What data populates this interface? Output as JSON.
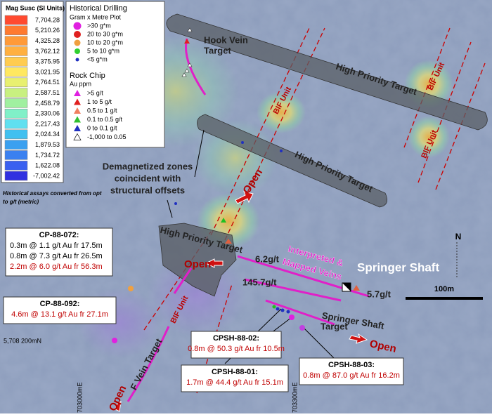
{
  "mag_legend": {
    "title": "Mag Susc (SI Units)",
    "values": [
      "7,704.28",
      "5,210.26",
      "4,325.28",
      "3,762.12",
      "3,375.95",
      "3,021.95",
      "2,764.51",
      "2,587.51",
      "2,458.79",
      "2,330.06",
      "2,217.43",
      "2,024.34",
      "1,879.53",
      "1,734.72",
      "1,622.08",
      "-7,002.42"
    ],
    "note": [
      "Historical assays converted from opt",
      "to g/t (metric)"
    ]
  },
  "drill_legend": {
    "title": "Historical Drilling",
    "subtitle": "Gram x Metre Plot",
    "items": [
      ">30 g*m",
      "20 to 30 g*m",
      "10 to 20 g*m",
      "5 to 10 g*m",
      "<5 g*m"
    ]
  },
  "rock_legend": {
    "title": "Rock Chip",
    "subtitle": "Au ppm",
    "items": [
      ">5 g/t",
      "1 to 5 g/t",
      "0.5 to 1 g/t",
      "0.1 to 0.5 g/t",
      "0 to 0.1 g/t",
      "-1,000  to  0.05"
    ]
  },
  "map_labels": {
    "hook_vein": [
      "Hook Vein",
      "Target"
    ],
    "high_priority": [
      "High Priority Target",
      "High Priority Target",
      "High Priority Target"
    ],
    "bif_unit": [
      "BIF Unit",
      "BIF Unit",
      "BIF Unit",
      "BIF Unit"
    ],
    "demag": [
      "Demagnetized zones",
      "coincident with",
      "structural offsets"
    ],
    "open": [
      "Open",
      "Open",
      "Open",
      "Open"
    ],
    "veins": [
      "Interpreted &",
      "Mapped Veins"
    ],
    "springer_shaft": "Springer Shaft",
    "grades": [
      "6.2g/t",
      "145.7g/t",
      "5.7g/t"
    ],
    "scale": "100m",
    "north": "N",
    "springer_target": [
      "Springer Shaft",
      "Target"
    ],
    "f_vein": "F Vein Target",
    "northing": "5,708 200mN",
    "eastings": [
      "703000mE",
      "703300mE"
    ]
  },
  "callouts": [
    {
      "id": "CP-88-072:",
      "lines": [
        "0.3m @ 1.1 g/t Au fr 17.5m",
        "0.8m @ 7.3 g/t Au fr 26.5m",
        "2.2m @ 6.0 g/t Au fr 56.3m"
      ]
    },
    {
      "id": "CP-88-092:",
      "lines": [
        "4.6m @ 13.1 g/t Au fr 27.1m"
      ]
    },
    {
      "id": "CPSH-88-02:",
      "lines": [
        "0.8m @ 50.3 g/t Au fr 10.5m"
      ]
    },
    {
      "id": "CPSH-88-01:",
      "lines": [
        "1.7m @ 44.4 g/t Au fr 15.1m"
      ]
    },
    {
      "id": "CPSH-88-03:",
      "lines": [
        "0.8m @ 87.0 g/t Au fr 16.2m"
      ]
    }
  ]
}
